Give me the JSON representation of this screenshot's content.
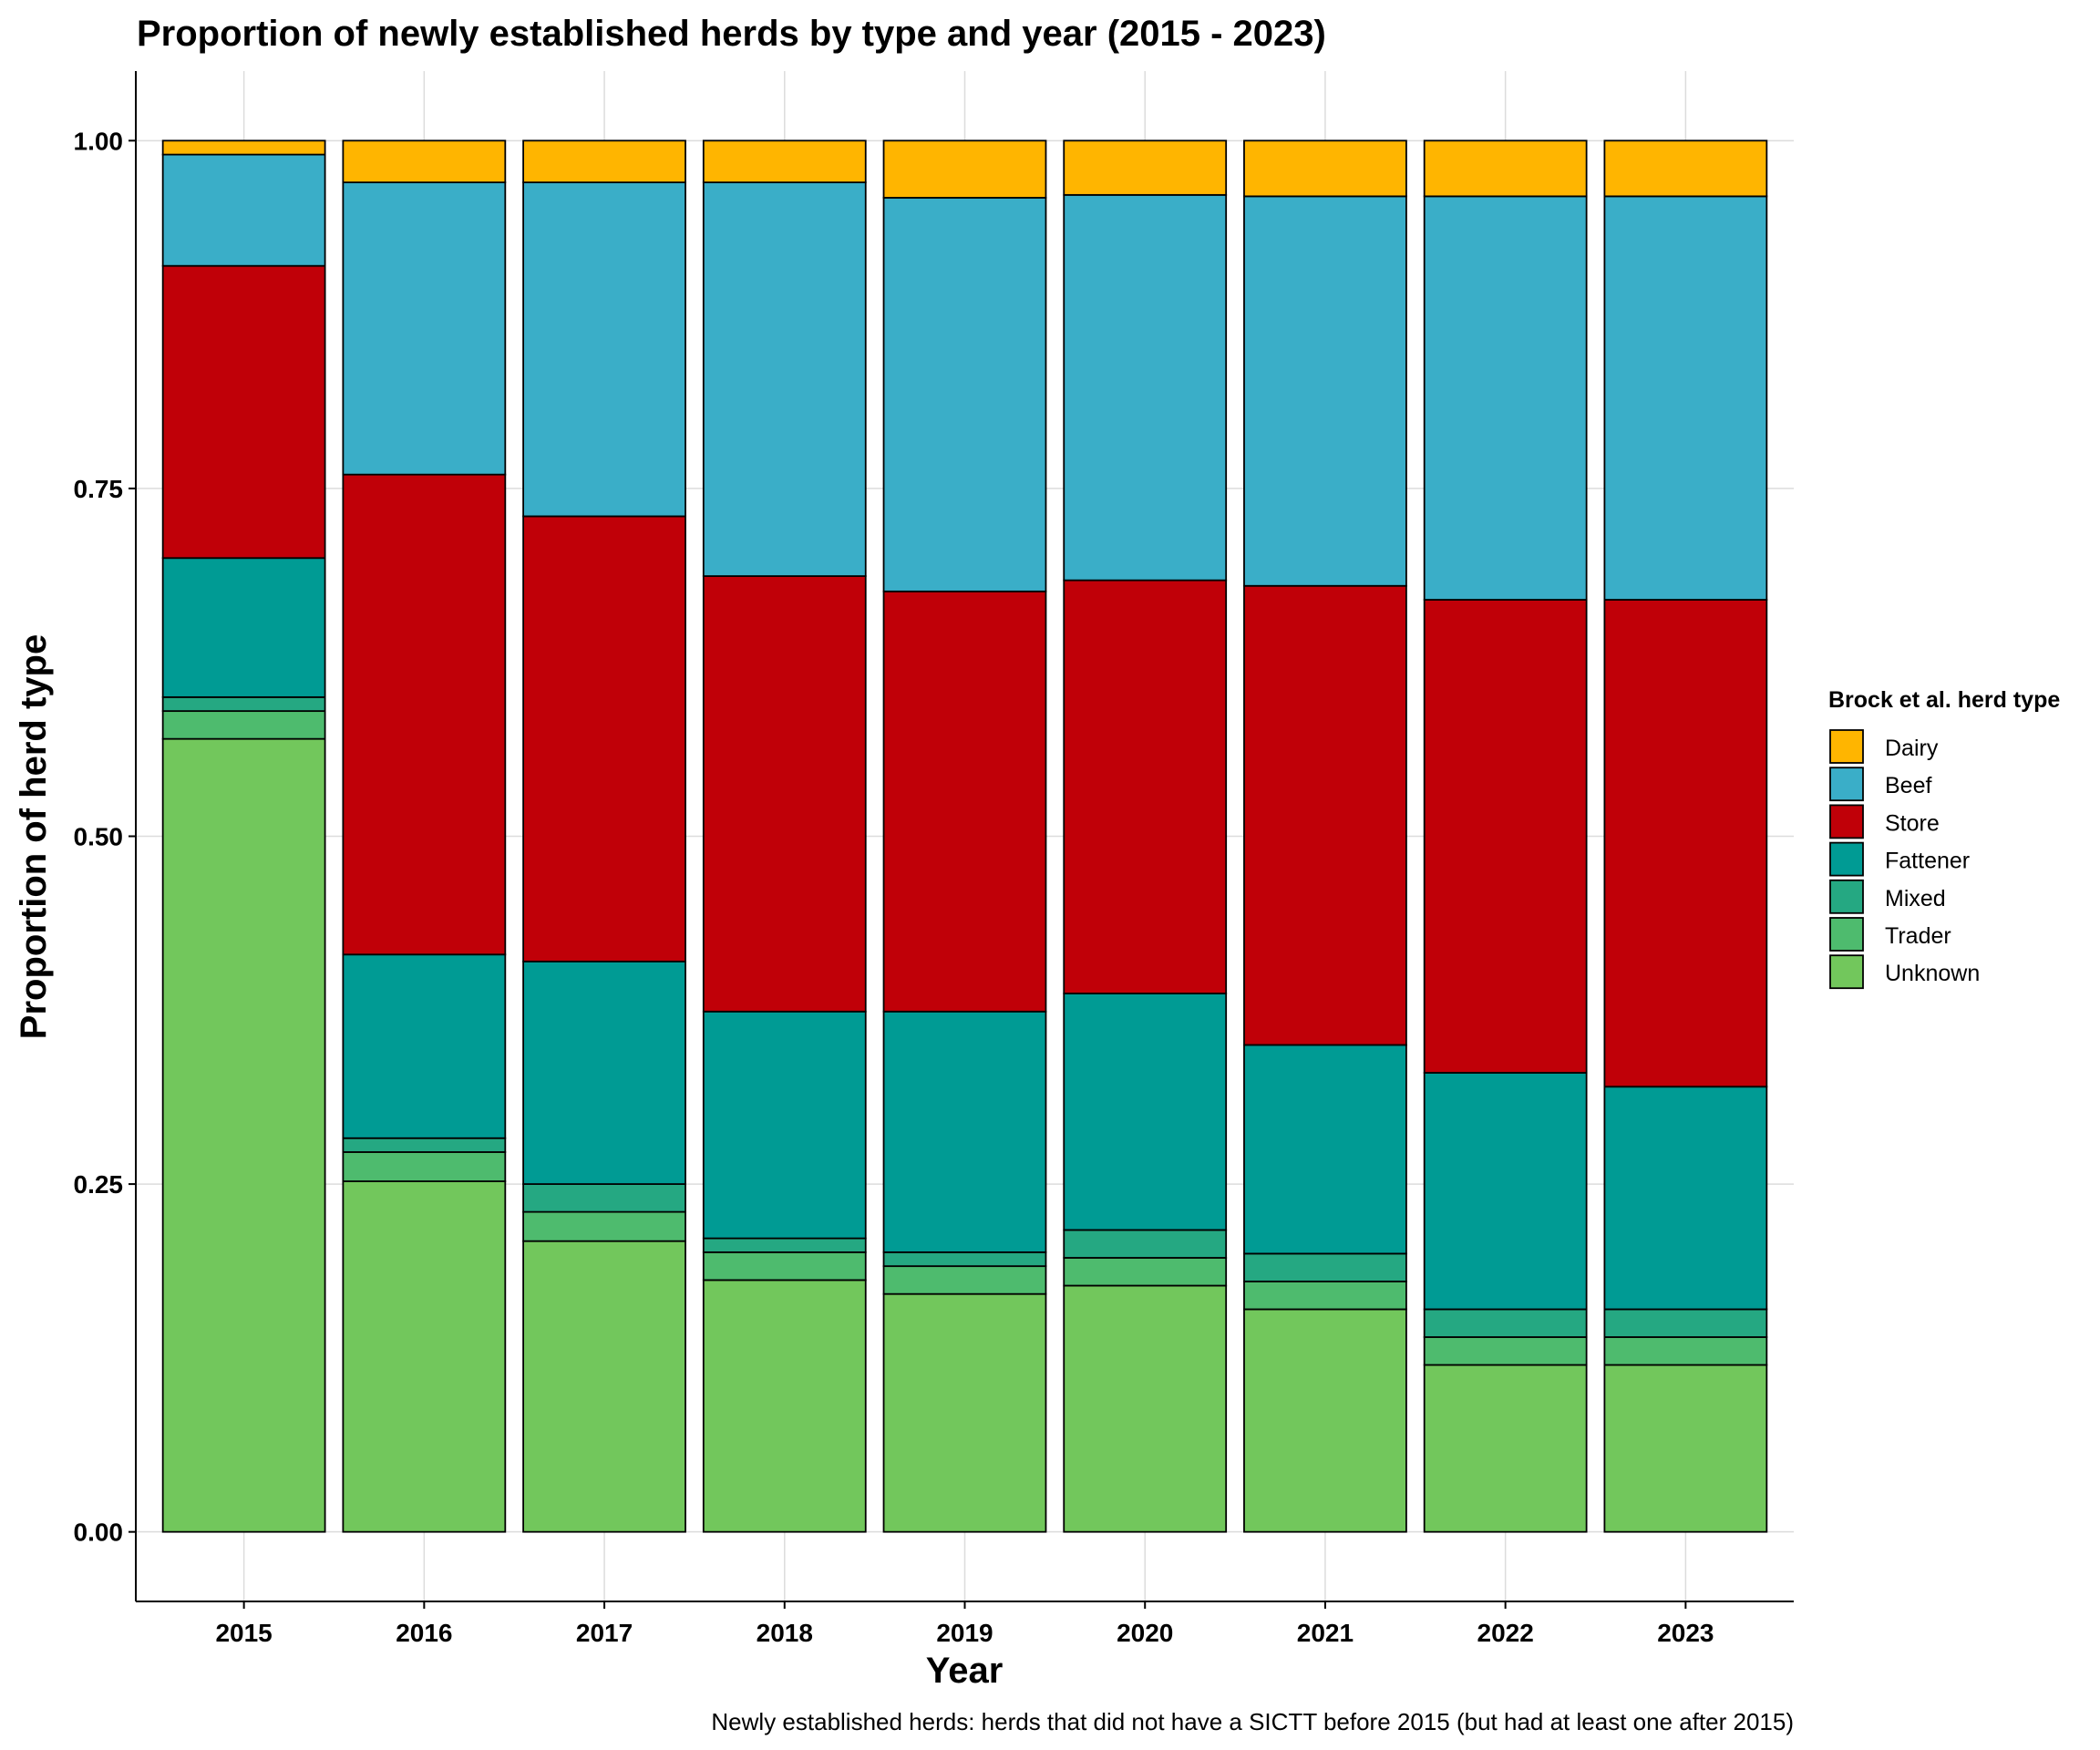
{
  "chart_data": {
    "type": "bar",
    "stacked": true,
    "title": "Proportion of newly established herds by type and year (2015 - 2023)",
    "xlabel": "Year",
    "ylabel": "Proportion of herd type",
    "caption": "Newly established herds: herds that did not have a SICTT before 2015 (but had at least one after 2015)",
    "categories": [
      "2015",
      "2016",
      "2017",
      "2018",
      "2019",
      "2020",
      "2021",
      "2022",
      "2023"
    ],
    "ylim": [
      -0.05,
      1.05
    ],
    "yticks": [
      0.0,
      0.25,
      0.5,
      0.75,
      1.0
    ],
    "ytick_labels": [
      "0.00",
      "0.25",
      "0.50",
      "0.75",
      "1.00"
    ],
    "grid": true,
    "legend": {
      "title": "Brock et al. herd type",
      "placement": "right"
    },
    "series": [
      {
        "name": "Unknown",
        "color": "#72C75C",
        "values": [
          0.57,
          0.252,
          0.209,
          0.181,
          0.171,
          0.177,
          0.16,
          0.12,
          0.12
        ]
      },
      {
        "name": "Trader",
        "color": "#4EBB6E",
        "values": [
          0.02,
          0.021,
          0.021,
          0.02,
          0.02,
          0.02,
          0.02,
          0.02,
          0.02
        ]
      },
      {
        "name": "Mixed",
        "color": "#25A882",
        "values": [
          0.01,
          0.01,
          0.02,
          0.01,
          0.01,
          0.02,
          0.02,
          0.02,
          0.02
        ]
      },
      {
        "name": "Fattener",
        "color": "#009B94",
        "values": [
          0.1,
          0.132,
          0.16,
          0.163,
          0.173,
          0.17,
          0.15,
          0.17,
          0.16
        ]
      },
      {
        "name": "Store",
        "color": "#C00008",
        "values": [
          0.21,
          0.345,
          0.32,
          0.313,
          0.302,
          0.297,
          0.33,
          0.34,
          0.35
        ]
      },
      {
        "name": "Beef",
        "color": "#3AAEC8",
        "values": [
          0.08,
          0.21,
          0.24,
          0.283,
          0.283,
          0.277,
          0.28,
          0.29,
          0.29
        ]
      },
      {
        "name": "Dairy",
        "color": "#FFB500",
        "values": [
          0.01,
          0.03,
          0.03,
          0.03,
          0.041,
          0.039,
          0.04,
          0.04,
          0.04
        ]
      }
    ],
    "legend_order": [
      "Dairy",
      "Beef",
      "Store",
      "Fattener",
      "Mixed",
      "Trader",
      "Unknown"
    ]
  }
}
